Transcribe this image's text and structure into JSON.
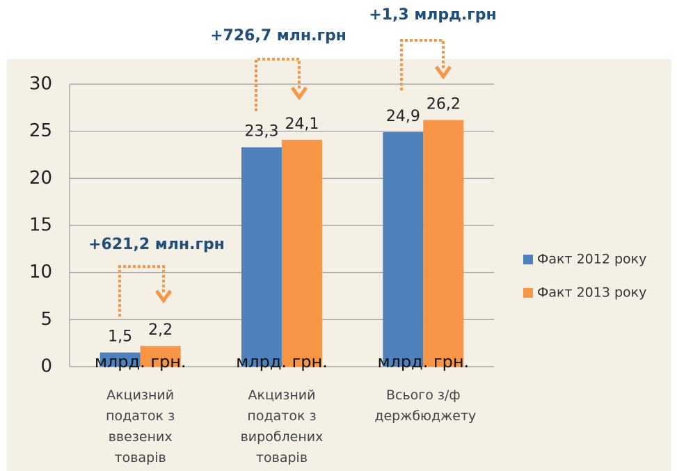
{
  "chart_data": {
    "type": "bar",
    "categories": [
      "Акцизний податок з ввезених товарів",
      "Акцизний податок з вироблених товарів",
      "Всього з/ф держбюджету"
    ],
    "series": [
      {
        "name": "Факт 2012 року",
        "color": "#4f81bd",
        "values": [
          1.5,
          23.3,
          24.9
        ],
        "value_labels": [
          "1,5",
          "23,3",
          "24,9"
        ]
      },
      {
        "name": "Факт 2013 року",
        "color": "#f79646",
        "values": [
          2.2,
          24.1,
          26.2
        ],
        "value_labels": [
          "2,2",
          "24,1",
          "26,2"
        ]
      }
    ],
    "bar_unit_label": "млрд. грн.",
    "annotations": [
      "+621,2 млн.грн",
      "+726,7 млн.грн",
      "+1,3 млрд.грн"
    ],
    "ylim": [
      0,
      30
    ],
    "yticks": [
      0,
      5,
      10,
      15,
      20,
      25,
      30
    ],
    "grid": true,
    "legend": "right"
  }
}
